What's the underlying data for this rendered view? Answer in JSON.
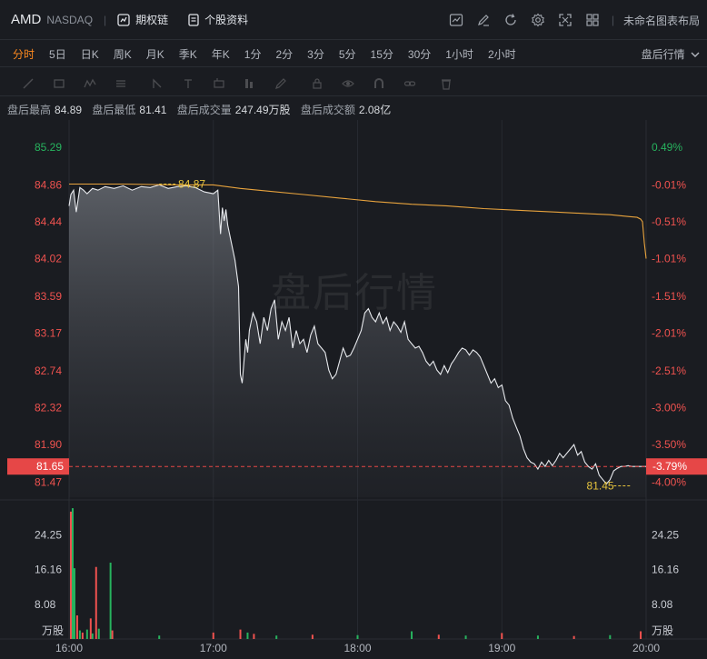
{
  "header": {
    "symbol": "AMD",
    "exchange": "NASDAQ",
    "options_chain_label": "期权链",
    "stock_info_label": "个股资料",
    "layout_label": "未命名图表布局"
  },
  "timeframes": [
    {
      "label": "分时",
      "active": true
    },
    {
      "label": "5日"
    },
    {
      "label": "日K"
    },
    {
      "label": "周K"
    },
    {
      "label": "月K"
    },
    {
      "label": "季K"
    },
    {
      "label": "年K"
    },
    {
      "label": "1分"
    },
    {
      "label": "2分"
    },
    {
      "label": "3分"
    },
    {
      "label": "5分"
    },
    {
      "label": "15分"
    },
    {
      "label": "30分"
    },
    {
      "label": "1小时"
    },
    {
      "label": "2小时"
    }
  ],
  "session_select": "盘后行情",
  "drawing_tools": [
    "line-tool-icon",
    "rect-tool-icon",
    "pattern-tool-icon",
    "brush-tool-icon",
    "fib-tool-icon",
    "cursor-tool-icon",
    "text-tool-icon",
    "measure-tool-icon",
    "pencil-tool-icon",
    "lock-icon",
    "eye-icon",
    "magnet-icon",
    "link-icon",
    "trash-icon"
  ],
  "stats": {
    "high_label": "盘后最高",
    "high": "84.89",
    "low_label": "盘后最低",
    "low": "81.41",
    "volume_label": "盘后成交量",
    "volume": "247.49万股",
    "amount_label": "盘后成交额",
    "amount": "2.08亿"
  },
  "watermark": "盘后行情",
  "colors": {
    "up": "#27b35e",
    "down": "#f0524f",
    "avg_line": "#e8a33d",
    "price_line": "#e8eaee",
    "last_price_bg": "#e64747"
  },
  "chart_data": {
    "type": "line",
    "title": "",
    "xlabel": "",
    "ylabel": "",
    "x_ticks": [
      "16:00",
      "17:00",
      "18:00",
      "19:00",
      "20:00"
    ],
    "price_ticks": [
      "85.29",
      "84.86",
      "84.44",
      "84.02",
      "83.59",
      "83.17",
      "82.74",
      "82.32",
      "81.90",
      "81.47"
    ],
    "pct_ticks": [
      "0.49%",
      "-0.01%",
      "-0.51%",
      "-1.01%",
      "-1.51%",
      "-2.01%",
      "-2.51%",
      "-3.00%",
      "-3.50%",
      "-4.00%"
    ],
    "ylim": [
      81.3,
      85.6
    ],
    "prev_close": 84.87,
    "last_price": "81.65",
    "last_pct": "-3.79%",
    "high_marker": "84.87",
    "low_marker": "81.45",
    "price_series": {
      "name": "",
      "x": [
        0,
        2,
        5,
        8,
        12,
        16,
        20,
        26,
        32,
        40,
        50,
        60,
        70,
        80,
        90,
        100,
        110,
        120,
        130,
        140,
        150,
        160,
        165,
        168,
        170,
        172,
        174,
        176,
        180,
        184,
        188,
        190,
        192,
        194,
        196,
        198,
        200,
        204,
        208,
        212,
        216,
        220,
        224,
        228,
        232,
        236,
        240,
        244,
        248,
        252,
        256,
        260,
        264,
        268,
        272,
        276,
        280,
        284,
        288,
        292,
        296,
        300,
        304,
        308,
        312,
        316,
        320,
        324,
        328,
        332,
        336,
        340,
        344,
        348,
        352,
        356,
        360,
        364,
        368,
        372,
        376,
        380,
        384,
        388,
        392,
        396,
        400,
        404,
        408,
        412,
        416,
        420,
        424,
        428,
        432,
        436,
        440,
        444,
        448,
        452,
        456,
        460,
        464,
        468,
        472,
        476,
        480,
        484,
        488,
        492,
        496,
        500,
        504,
        508,
        512,
        516,
        520,
        524,
        528,
        532,
        536,
        540,
        544,
        548,
        552,
        556,
        560,
        564,
        568,
        572,
        576,
        580,
        584,
        588,
        592,
        596,
        600,
        604,
        608,
        612,
        616,
        620,
        624,
        628,
        632,
        636,
        640
      ],
      "y": [
        84.62,
        84.75,
        84.8,
        84.55,
        84.83,
        84.8,
        84.76,
        84.82,
        84.8,
        84.84,
        84.82,
        84.85,
        84.8,
        84.84,
        84.83,
        84.86,
        84.82,
        84.84,
        84.85,
        84.83,
        84.78,
        84.76,
        84.8,
        84.3,
        84.6,
        84.45,
        84.58,
        84.4,
        84.2,
        84.0,
        83.7,
        82.7,
        82.6,
        82.85,
        83.1,
        82.95,
        83.2,
        83.4,
        83.3,
        83.05,
        83.35,
        83.2,
        83.45,
        83.55,
        83.1,
        83.3,
        83.2,
        83.35,
        83.0,
        83.2,
        83.05,
        83.1,
        82.95,
        83.15,
        83.25,
        83.05,
        83.0,
        82.95,
        82.75,
        82.65,
        82.7,
        82.85,
        83.0,
        82.9,
        82.92,
        83.0,
        83.1,
        83.2,
        83.4,
        83.45,
        83.35,
        83.3,
        83.4,
        83.28,
        83.35,
        83.2,
        83.3,
        83.25,
        83.18,
        83.3,
        83.1,
        83.05,
        83.0,
        83.02,
        82.95,
        82.85,
        82.8,
        82.85,
        82.75,
        82.7,
        82.8,
        82.72,
        82.82,
        82.88,
        82.95,
        83.0,
        82.98,
        82.92,
        82.98,
        82.95,
        82.9,
        82.8,
        82.7,
        82.6,
        82.65,
        82.55,
        82.58,
        82.4,
        82.35,
        82.2,
        82.1,
        82.0,
        81.85,
        81.75,
        81.7,
        81.68,
        81.62,
        81.7,
        81.65,
        81.72,
        81.66,
        81.72,
        81.8,
        81.75,
        81.8,
        81.85,
        81.9,
        81.78,
        81.82,
        81.7,
        81.65,
        81.62,
        81.68,
        81.55,
        81.5,
        81.45,
        81.5,
        81.6,
        81.63,
        81.65,
        81.65,
        81.66,
        81.65,
        81.65,
        81.65,
        81.65,
        81.65
      ]
    },
    "avg_series": {
      "name": "",
      "x": [
        0,
        60,
        120,
        160,
        190,
        220,
        260,
        300,
        340,
        380,
        420,
        460,
        500,
        540,
        580,
        600,
        620,
        630,
        634,
        636,
        638,
        640
      ],
      "y": [
        84.87,
        84.87,
        84.86,
        84.86,
        84.82,
        84.79,
        84.75,
        84.71,
        84.67,
        84.64,
        84.62,
        84.59,
        84.57,
        84.55,
        84.53,
        84.52,
        84.5,
        84.49,
        84.47,
        84.44,
        84.2,
        84.02
      ]
    },
    "volume": {
      "ticks": [
        "24.25",
        "16.16",
        "8.08"
      ],
      "unit": "万股",
      "ylim": [
        0,
        32
      ],
      "bars": [
        {
          "x": 2,
          "v": 29.7,
          "up": false
        },
        {
          "x": 4,
          "v": 30.5,
          "up": true
        },
        {
          "x": 6,
          "v": 16.5,
          "up": true
        },
        {
          "x": 9,
          "v": 5.5,
          "up": false
        },
        {
          "x": 12,
          "v": 2.0,
          "up": true
        },
        {
          "x": 15,
          "v": 1.5,
          "up": false
        },
        {
          "x": 20,
          "v": 2.2,
          "up": true
        },
        {
          "x": 24,
          "v": 4.8,
          "up": false
        },
        {
          "x": 26,
          "v": 1.3,
          "up": true
        },
        {
          "x": 30,
          "v": 16.8,
          "up": false
        },
        {
          "x": 33,
          "v": 2.4,
          "up": true
        },
        {
          "x": 46,
          "v": 17.8,
          "up": true
        },
        {
          "x": 48,
          "v": 2.0,
          "up": false
        },
        {
          "x": 100,
          "v": 0.8,
          "up": true
        },
        {
          "x": 160,
          "v": 1.5,
          "up": false
        },
        {
          "x": 190,
          "v": 2.2,
          "up": false
        },
        {
          "x": 198,
          "v": 1.5,
          "up": true
        },
        {
          "x": 205,
          "v": 1.2,
          "up": false
        },
        {
          "x": 230,
          "v": 0.8,
          "up": true
        },
        {
          "x": 270,
          "v": 1.0,
          "up": false
        },
        {
          "x": 320,
          "v": 0.9,
          "up": true
        },
        {
          "x": 380,
          "v": 1.8,
          "up": true
        },
        {
          "x": 410,
          "v": 1.0,
          "up": false
        },
        {
          "x": 440,
          "v": 0.8,
          "up": true
        },
        {
          "x": 480,
          "v": 1.4,
          "up": false
        },
        {
          "x": 520,
          "v": 0.8,
          "up": true
        },
        {
          "x": 560,
          "v": 0.7,
          "up": false
        },
        {
          "x": 600,
          "v": 0.9,
          "up": true
        },
        {
          "x": 634,
          "v": 1.8,
          "up": false
        }
      ]
    }
  }
}
